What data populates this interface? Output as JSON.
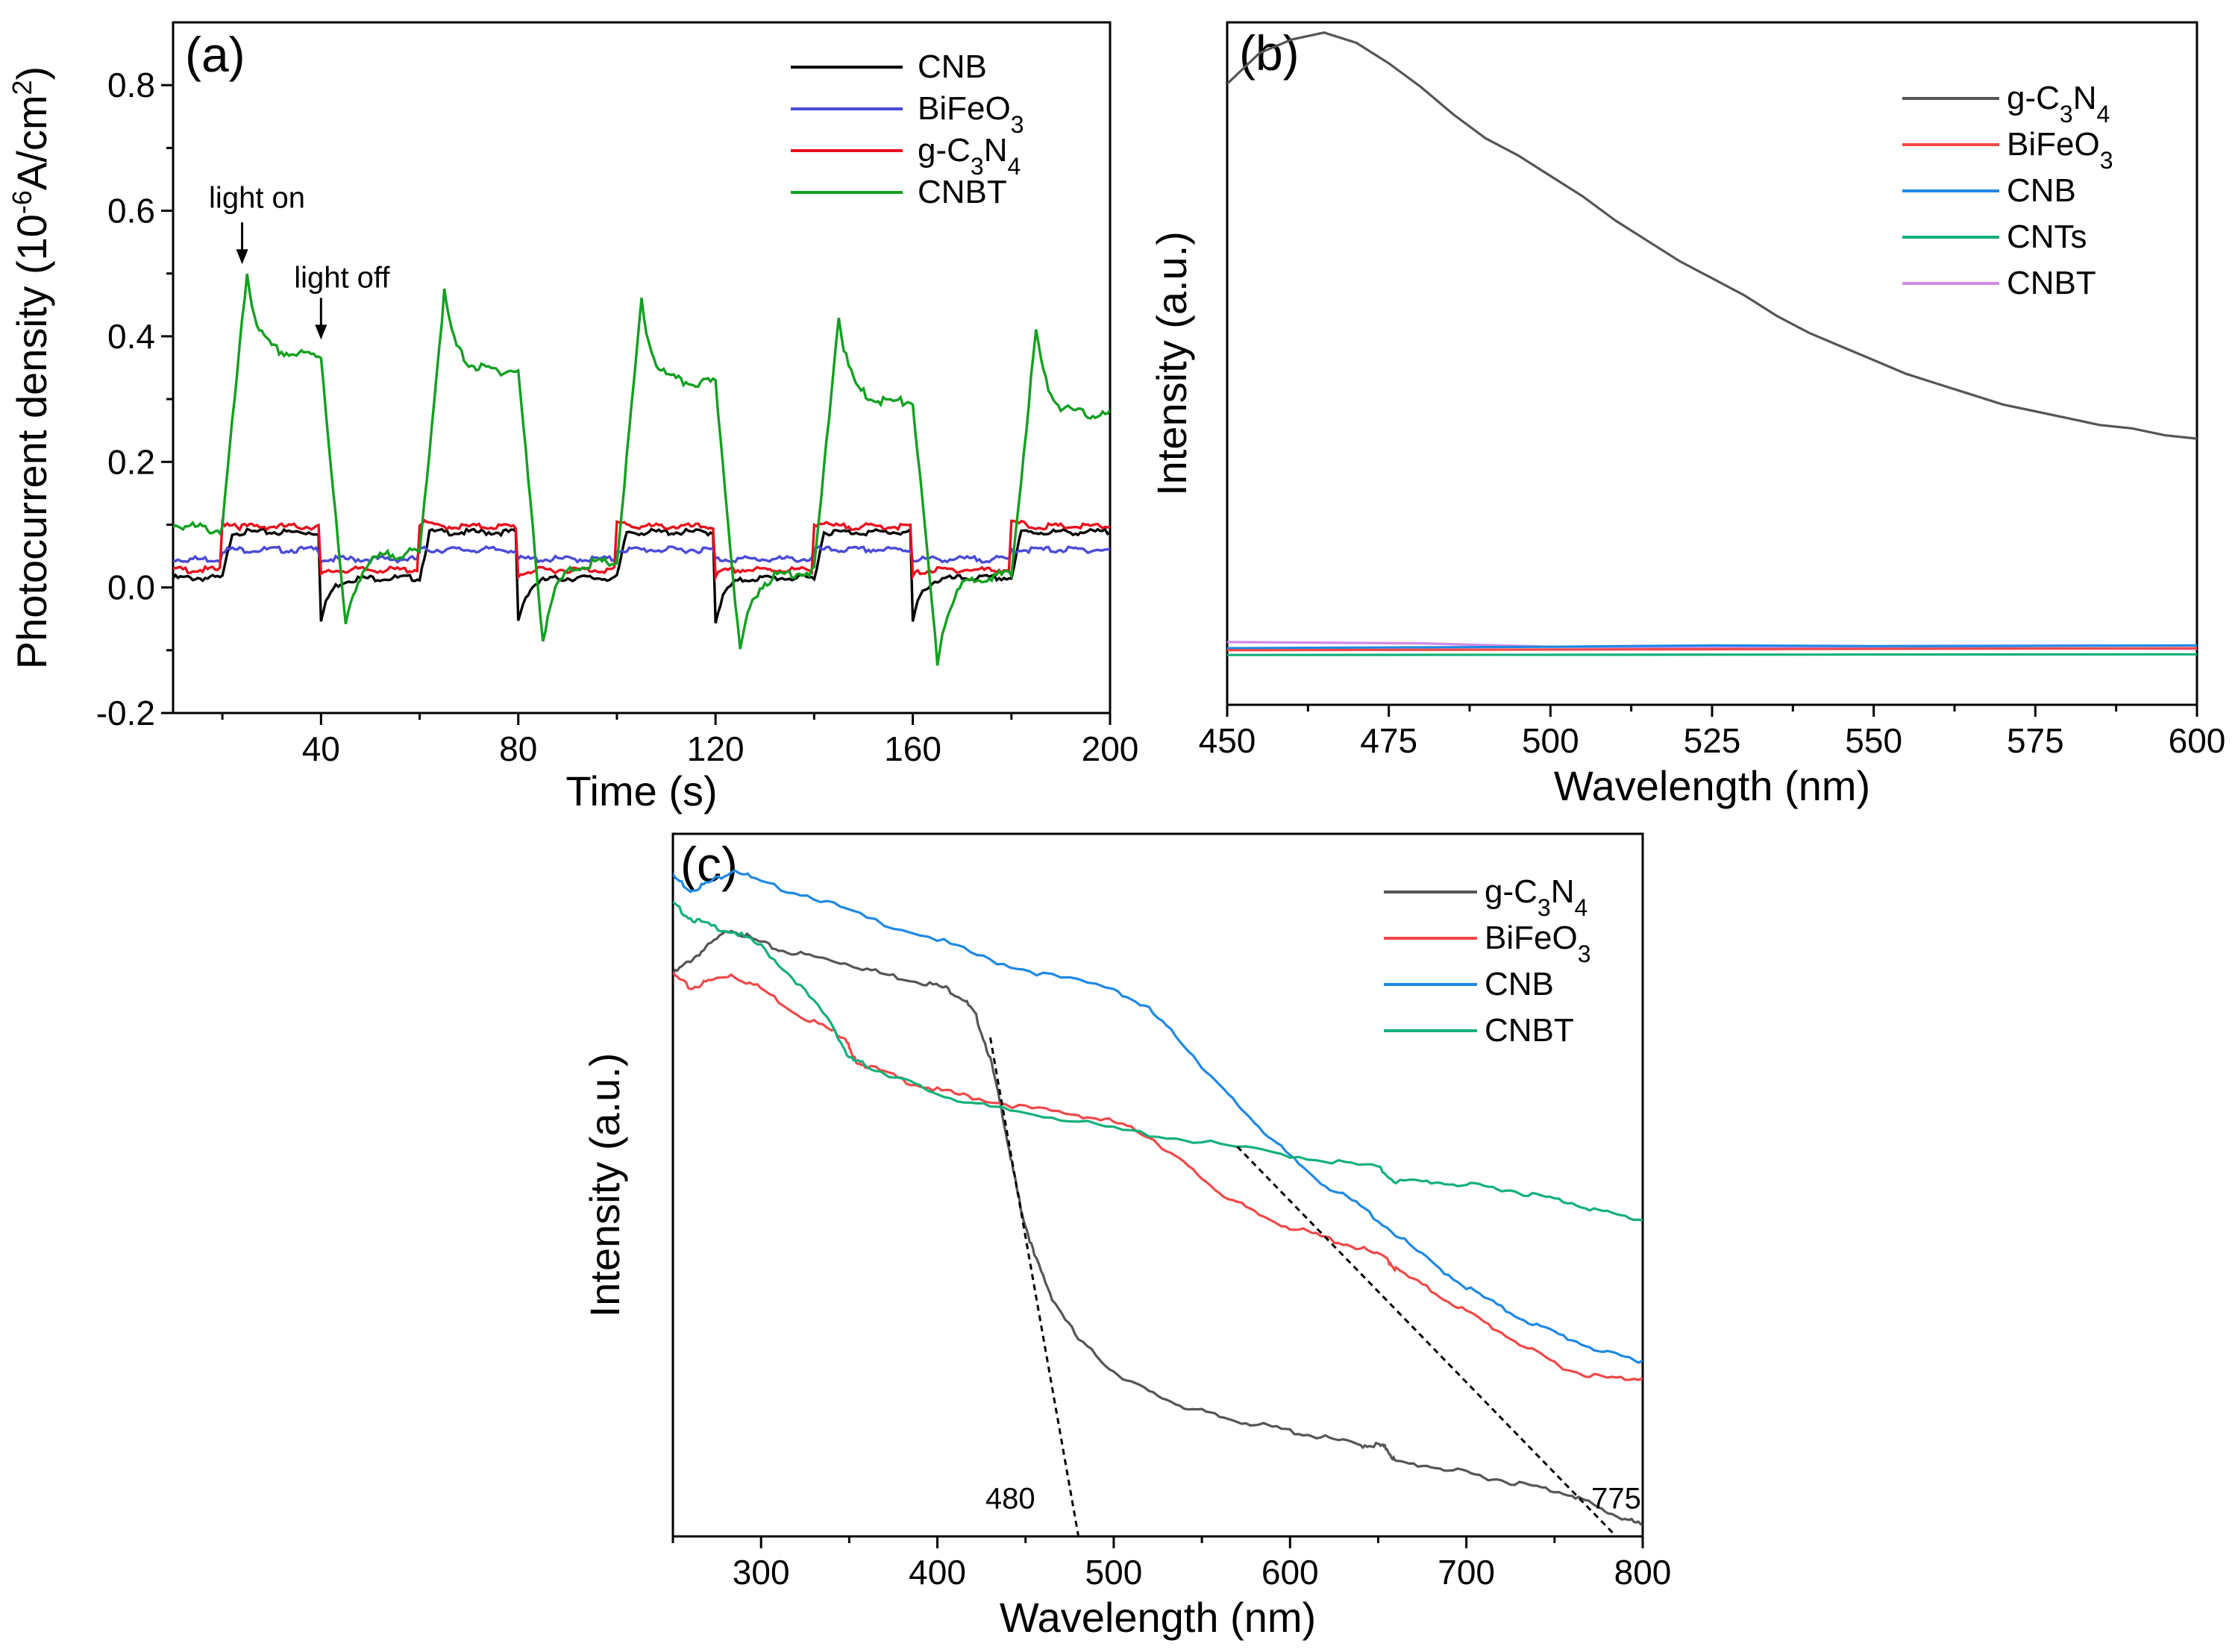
{
  "chart_data": [
    {
      "id": "a",
      "type": "line",
      "panel_label": "(a)",
      "xlabel": "Time (s)",
      "ylabel_parts": [
        "Photocurrent density (10",
        "-6",
        "A/cm",
        "2",
        ")"
      ],
      "xlim": [
        10,
        200
      ],
      "ylim": [
        -0.2,
        0.9
      ],
      "xticks": [
        "40",
        "80",
        "120",
        "160",
        "200"
      ],
      "yticks": [
        "-0.2",
        "0.0",
        "0.2",
        "0.4",
        "0.6",
        "0.8"
      ],
      "legend": [
        {
          "label": "CNB",
          "parts": [
            [
              "CNB",
              ""
            ]
          ],
          "color": "#000000"
        },
        {
          "label": "BiFeO3",
          "parts": [
            [
              "BiFeO",
              ""
            ],
            [
              "3",
              "sub"
            ]
          ],
          "color": "#4a4ad8"
        },
        {
          "label": "g-C3N4",
          "parts": [
            [
              "g-C",
              ""
            ],
            [
              "3",
              "sub"
            ],
            [
              "N",
              ""
            ],
            [
              "4",
              "sub"
            ]
          ],
          "color": "#e8101e"
        },
        {
          "label": "CNBT",
          "parts": [
            [
              "CNBT",
              ""
            ]
          ],
          "color": "#12a020"
        }
      ],
      "annotations": [
        {
          "text": "light on",
          "x": 24,
          "y": 0.51
        },
        {
          "text": "light off",
          "x": 40,
          "y": 0.39
        }
      ],
      "cycles": {
        "on": [
          20,
          60,
          100,
          140,
          180
        ],
        "off": [
          40,
          80,
          120,
          160
        ]
      },
      "series": [
        {
          "name": "CNB",
          "color": "#000000",
          "base": 0.015,
          "on_level": 0.088,
          "transient": "off-spike",
          "spike_off": -0.055
        },
        {
          "name": "BiFeO3",
          "color": "#4a4ad8",
          "base": 0.045,
          "on_level": 0.06,
          "transient": "none"
        },
        {
          "name": "g-C3N4",
          "color": "#e8101e",
          "base": 0.028,
          "on_level": 0.097,
          "transient": "small"
        },
        {
          "name": "CNBT",
          "color": "#12a020",
          "start": 0.1,
          "on_peaks": [
            0.5,
            0.47,
            0.455,
            0.435,
            0.41
          ],
          "plateaus": [
            0.37,
            0.345,
            0.325,
            0.295,
            0.275
          ],
          "off_dips": [
            -0.065,
            -0.085,
            -0.105,
            -0.12
          ],
          "dark_levels": [
            0.055,
            0.04,
            0.025,
            0.02
          ]
        }
      ]
    },
    {
      "id": "b",
      "type": "line",
      "panel_label": "(b)",
      "xlabel": "Wavelength (nm)",
      "ylabel": "Intensity (a.u.)",
      "xlim": [
        450,
        600
      ],
      "ylim": [
        0,
        1
      ],
      "xticks": [
        "450",
        "475",
        "500",
        "525",
        "550",
        "575",
        "600"
      ],
      "legend": [
        {
          "label": "g-C3N4",
          "parts": [
            [
              "g-C",
              ""
            ],
            [
              "3",
              "sub"
            ],
            [
              "N",
              ""
            ],
            [
              "4",
              "sub"
            ]
          ],
          "color": "#555555"
        },
        {
          "label": "BiFeO3",
          "parts": [
            [
              "BiFeO",
              ""
            ],
            [
              "3",
              "sub"
            ]
          ],
          "color": "#f04848"
        },
        {
          "label": "CNB",
          "parts": [
            [
              "CNB",
              ""
            ]
          ],
          "color": "#1e88e5"
        },
        {
          "label": "CNTs",
          "parts": [
            [
              "CNTs",
              ""
            ]
          ],
          "color": "#12b07a"
        },
        {
          "label": "CNBT",
          "parts": [
            [
              "CNBT",
              ""
            ]
          ],
          "color": "#d08ae8"
        }
      ],
      "series": [
        {
          "name": "g-C3N4",
          "color": "#555555",
          "x": [
            450,
            455,
            460,
            465,
            470,
            475,
            480,
            485,
            490,
            495,
            500,
            505,
            510,
            515,
            520,
            525,
            530,
            535,
            540,
            545,
            550,
            555,
            560,
            565,
            570,
            575,
            580,
            585,
            590,
            595,
            600
          ],
          "y": [
            0.91,
            0.955,
            0.975,
            0.985,
            0.97,
            0.94,
            0.905,
            0.865,
            0.83,
            0.805,
            0.775,
            0.745,
            0.71,
            0.68,
            0.65,
            0.625,
            0.6,
            0.57,
            0.545,
            0.525,
            0.505,
            0.485,
            0.47,
            0.455,
            0.44,
            0.43,
            0.42,
            0.41,
            0.405,
            0.395,
            0.39
          ]
        },
        {
          "name": "BiFeO3",
          "color": "#f04848",
          "x": [
            450,
            600
          ],
          "y": [
            0.08,
            0.083
          ]
        },
        {
          "name": "CNB",
          "color": "#1e88e5",
          "x": [
            450,
            500,
            525,
            550,
            600
          ],
          "y": [
            0.083,
            0.085,
            0.087,
            0.086,
            0.087
          ]
        },
        {
          "name": "CNTs",
          "color": "#12b07a",
          "x": [
            450,
            600
          ],
          "y": [
            0.073,
            0.074
          ]
        },
        {
          "name": "CNBT",
          "color": "#d08ae8",
          "x": [
            450,
            480,
            500,
            600
          ],
          "y": [
            0.092,
            0.09,
            0.085,
            0.082
          ]
        }
      ]
    },
    {
      "id": "c",
      "type": "line",
      "panel_label": "(c)",
      "xlabel": "Wavelength (nm)",
      "ylabel": "Intensity (a.u.)",
      "xlim": [
        250,
        800
      ],
      "ylim": [
        0,
        1
      ],
      "xticks": [
        "300",
        "400",
        "500",
        "600",
        "700",
        "800"
      ],
      "legend": [
        {
          "label": "g-C3N4",
          "parts": [
            [
              "g-C",
              ""
            ],
            [
              "3",
              "sub"
            ],
            [
              "N",
              ""
            ],
            [
              "4",
              "sub"
            ]
          ],
          "color": "#555555"
        },
        {
          "label": "BiFeO3",
          "parts": [
            [
              "BiFeO",
              ""
            ],
            [
              "3",
              "sub"
            ]
          ],
          "color": "#f04848"
        },
        {
          "label": "CNB",
          "parts": [
            [
              "CNB",
              ""
            ]
          ],
          "color": "#1e88e5"
        },
        {
          "label": "CNBT",
          "parts": [
            [
              "CNBT",
              ""
            ]
          ],
          "color": "#12b07a"
        }
      ],
      "annotations": [
        {
          "text": "480",
          "x": 458,
          "y": 0.04
        },
        {
          "text": "775",
          "x": 785,
          "y": 0.04
        }
      ],
      "tangents": [
        {
          "x": [
            430,
            480
          ],
          "y": [
            0.71,
            0.0
          ]
        },
        {
          "x": [
            570,
            785
          ],
          "y": [
            0.555,
            0.0
          ]
        }
      ],
      "series": [
        {
          "name": "g-C3N4",
          "color": "#555555",
          "x": [
            250,
            260,
            270,
            283,
            295,
            310,
            330,
            350,
            370,
            390,
            405,
            415,
            422,
            430,
            437,
            443,
            448,
            455,
            465,
            480,
            500,
            520,
            540,
            560,
            580,
            600,
            620,
            640,
            650,
            655,
            660,
            680,
            700,
            720,
            740,
            760,
            775,
            790,
            800
          ],
          "y": [
            0.8,
            0.82,
            0.84,
            0.865,
            0.85,
            0.835,
            0.825,
            0.815,
            0.8,
            0.79,
            0.78,
            0.765,
            0.74,
            0.68,
            0.6,
            0.52,
            0.46,
            0.4,
            0.34,
            0.28,
            0.235,
            0.205,
            0.185,
            0.17,
            0.16,
            0.15,
            0.14,
            0.13,
            0.13,
            0.125,
            0.105,
            0.1,
            0.09,
            0.08,
            0.07,
            0.06,
            0.04,
            0.025,
            0.015
          ]
        },
        {
          "name": "BiFeO3",
          "color": "#f04848",
          "x": [
            250,
            260,
            270,
            283,
            300,
            320,
            340,
            348,
            352,
            360,
            380,
            400,
            420,
            450,
            480,
            500,
            520,
            540,
            560,
            580,
            600,
            620,
            640,
            655,
            660,
            680,
            700,
            720,
            740,
            760,
            780,
            800
          ],
          "y": [
            0.8,
            0.78,
            0.79,
            0.8,
            0.78,
            0.745,
            0.72,
            0.71,
            0.68,
            0.67,
            0.65,
            0.635,
            0.625,
            0.61,
            0.6,
            0.59,
            0.57,
            0.53,
            0.49,
            0.46,
            0.44,
            0.425,
            0.41,
            0.395,
            0.38,
            0.35,
            0.32,
            0.29,
            0.26,
            0.235,
            0.225,
            0.225
          ]
        },
        {
          "name": "CNB",
          "color": "#1e88e5",
          "x": [
            250,
            260,
            270,
            285,
            300,
            330,
            360,
            400,
            430,
            460,
            500,
            520,
            540,
            560,
            580,
            600,
            620,
            640,
            660,
            680,
            700,
            720,
            740,
            760,
            780,
            800
          ],
          "y": [
            0.94,
            0.92,
            0.93,
            0.95,
            0.93,
            0.91,
            0.88,
            0.85,
            0.82,
            0.8,
            0.78,
            0.75,
            0.7,
            0.64,
            0.59,
            0.54,
            0.5,
            0.47,
            0.43,
            0.39,
            0.355,
            0.325,
            0.3,
            0.28,
            0.26,
            0.25
          ]
        },
        {
          "name": "CNBT",
          "color": "#12b07a",
          "x": [
            250,
            260,
            270,
            285,
            300,
            320,
            340,
            350,
            360,
            380,
            400,
            430,
            460,
            500,
            540,
            580,
            620,
            650,
            660,
            680,
            700,
            720,
            740,
            760,
            780,
            800
          ],
          "y": [
            0.9,
            0.88,
            0.87,
            0.86,
            0.84,
            0.79,
            0.73,
            0.68,
            0.67,
            0.65,
            0.63,
            0.61,
            0.6,
            0.58,
            0.565,
            0.55,
            0.535,
            0.525,
            0.505,
            0.505,
            0.5,
            0.495,
            0.485,
            0.475,
            0.46,
            0.45
          ]
        }
      ]
    }
  ]
}
